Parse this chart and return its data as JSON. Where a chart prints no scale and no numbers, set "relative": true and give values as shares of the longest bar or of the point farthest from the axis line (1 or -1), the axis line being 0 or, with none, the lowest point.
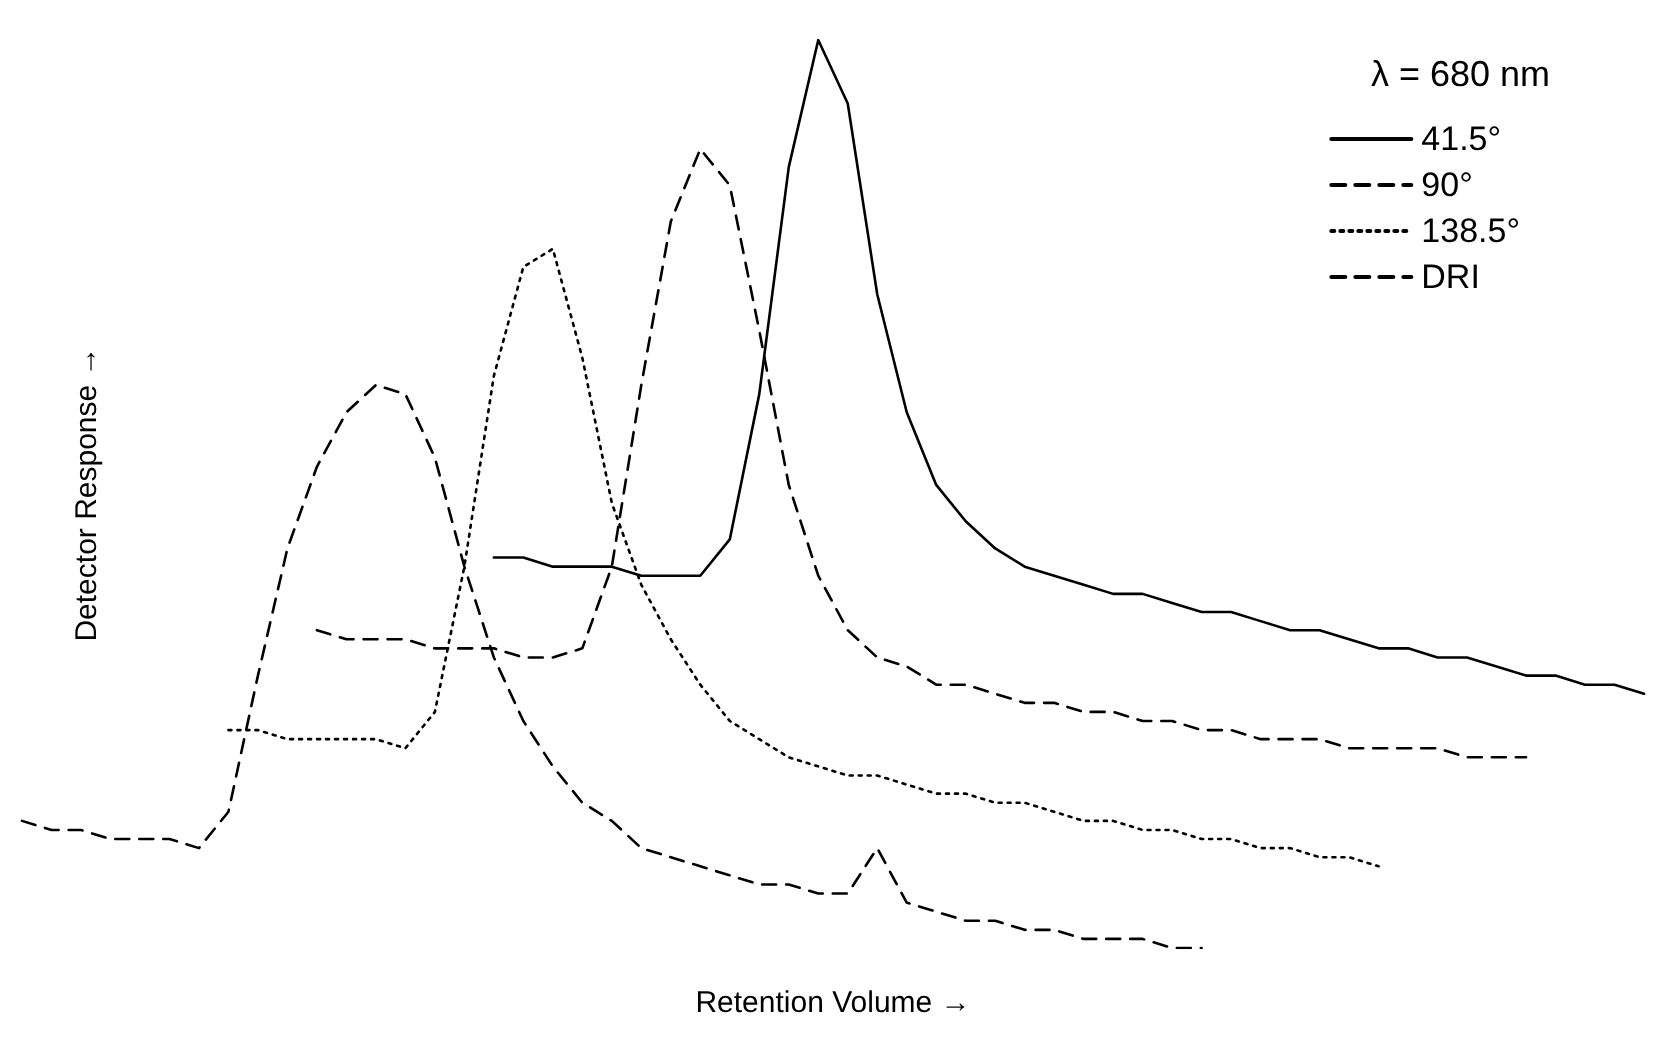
{
  "chart_data": {
    "type": "line",
    "relative": true,
    "xlabel": "Retention Volume →",
    "ylabel": "Detector Response →",
    "legend_title": "λ = 680 nm",
    "legend": "top right",
    "grid": false,
    "marker": "none",
    "categories": [
      null,
      null,
      null,
      null,
      null,
      null,
      null,
      null,
      null,
      null,
      null,
      null,
      null,
      null,
      null,
      null,
      null,
      null,
      null,
      null,
      null,
      null,
      null,
      null,
      null,
      null,
      null,
      null,
      null,
      null,
      null,
      null,
      null,
      null,
      null,
      null,
      null,
      null,
      null,
      null,
      null,
      null,
      null,
      null,
      null,
      null,
      null,
      null,
      null,
      null,
      null,
      null,
      null,
      null,
      null,
      null
    ],
    "series": [
      {
        "name": "41.5°",
        "color": "#000000",
        "line_style": "solid",
        "values": [
          null,
          null,
          null,
          null,
          null,
          null,
          null,
          null,
          null,
          null,
          null,
          null,
          null,
          null,
          null,
          null,
          0.43,
          0.43,
          0.42,
          0.42,
          0.42,
          0.41,
          0.41,
          0.41,
          0.45,
          0.61,
          0.86,
          1,
          0.93,
          0.72,
          0.59,
          0.51,
          0.47,
          0.44,
          0.42,
          0.41,
          0.4,
          0.39,
          0.39,
          0.38,
          0.37,
          0.37,
          0.36,
          0.35,
          0.35,
          0.34,
          0.33,
          0.33,
          0.32,
          0.32,
          0.31,
          0.3,
          0.3,
          0.29,
          0.29,
          0.28
        ]
      },
      {
        "name": "90°",
        "color": "#000000",
        "line_style": "dashed",
        "values": [
          null,
          null,
          null,
          null,
          null,
          null,
          null,
          null,
          null,
          null,
          0.35,
          0.34,
          0.34,
          0.34,
          0.33,
          0.33,
          0.33,
          0.32,
          0.32,
          0.33,
          0.42,
          0.62,
          0.8,
          0.88,
          0.84,
          0.68,
          0.51,
          0.41,
          0.35,
          0.32,
          0.31,
          0.29,
          0.29,
          0.28,
          0.27,
          0.27,
          0.26,
          0.26,
          0.25,
          0.25,
          0.24,
          0.24,
          0.23,
          0.23,
          0.23,
          0.22,
          0.22,
          0.22,
          0.22,
          0.21,
          0.21,
          0.21,
          null,
          null,
          null,
          null
        ]
      },
      {
        "name": "138.5°",
        "color": "#000000",
        "line_style": "dotted",
        "values": [
          null,
          null,
          null,
          null,
          null,
          null,
          null,
          0.24,
          0.24,
          0.23,
          0.23,
          0.23,
          0.23,
          0.22,
          0.26,
          0.42,
          0.63,
          0.75,
          0.77,
          0.65,
          0.49,
          0.4,
          0.34,
          0.29,
          0.25,
          0.23,
          0.21,
          0.2,
          0.19,
          0.19,
          0.18,
          0.17,
          0.17,
          0.16,
          0.16,
          0.15,
          0.14,
          0.14,
          0.13,
          0.13,
          0.12,
          0.12,
          0.11,
          0.11,
          0.1,
          0.1,
          0.09,
          null,
          null,
          null,
          null,
          null,
          null,
          null,
          null,
          null
        ]
      },
      {
        "name": "DRI",
        "color": "#000000",
        "line_style": "dashed",
        "values": [
          0.14,
          0.13,
          0.13,
          0.12,
          0.12,
          0.12,
          0.11,
          0.15,
          0.3,
          0.44,
          0.53,
          0.59,
          0.62,
          0.61,
          0.54,
          0.42,
          0.32,
          0.25,
          0.2,
          0.16,
          0.14,
          0.11,
          0.1,
          0.09,
          0.08,
          0.07,
          0.07,
          0.06,
          0.06,
          0.11,
          0.05,
          0.04,
          0.03,
          0.03,
          0.02,
          0.02,
          0.01,
          0.01,
          0.01,
          0,
          0,
          null,
          null,
          null,
          null,
          null,
          null,
          null,
          null,
          null,
          null,
          null,
          null,
          null,
          null,
          null
        ]
      }
    ]
  }
}
